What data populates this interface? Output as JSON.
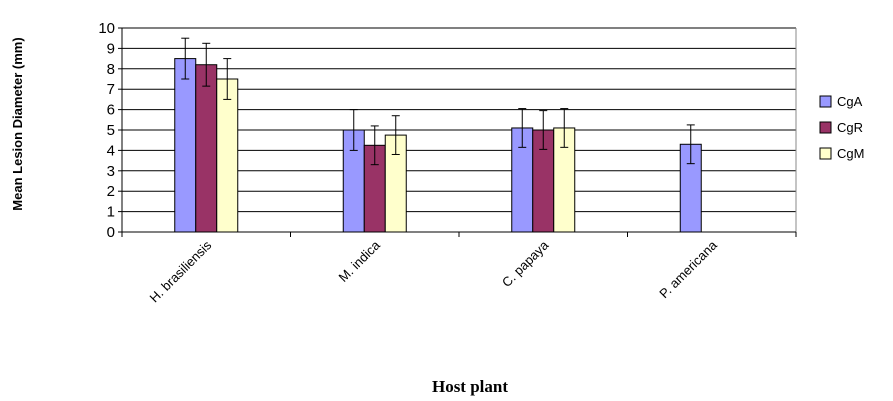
{
  "chart_data": {
    "type": "bar",
    "xlabel": "Host plant",
    "ylabel": "Mean Lesion Diameter (mm)",
    "ylim": [
      0,
      10
    ],
    "yticks": [
      "0",
      "1",
      "2",
      "3",
      "4",
      "5",
      "6",
      "7",
      "8",
      "9",
      "10"
    ],
    "grid": true,
    "legend_position": "right",
    "categories": [
      "H. brasiliensis",
      "M. indica",
      "C. papaya",
      "P. americana"
    ],
    "series": [
      {
        "name": "CgA",
        "color": "#9999ff",
        "values": [
          8.5,
          5.0,
          5.1,
          4.3
        ],
        "errors": [
          1.0,
          1.0,
          0.95,
          0.95
        ]
      },
      {
        "name": "CgR",
        "color": "#993366",
        "values": [
          8.2,
          4.25,
          5.0,
          null
        ],
        "errors": [
          1.05,
          0.95,
          0.95,
          null
        ]
      },
      {
        "name": "CgM",
        "color": "#ffffcc",
        "values": [
          7.5,
          4.75,
          5.1,
          null
        ],
        "errors": [
          1.0,
          0.95,
          0.95,
          null
        ]
      }
    ]
  }
}
